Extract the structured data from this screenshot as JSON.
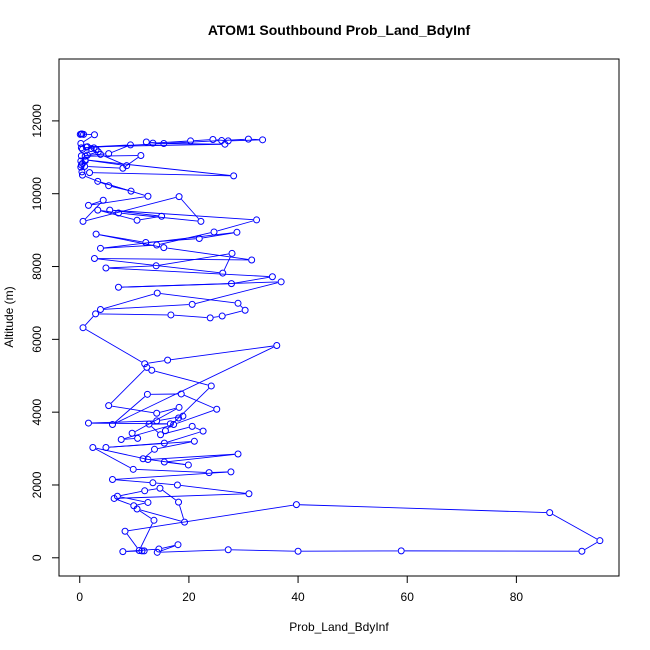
{
  "chart_data": {
    "type": "line",
    "title": "ATOM1 Southbound Prob_Land_BdyInf",
    "xlabel": "Prob_Land_BdyInf",
    "ylabel": "Altitude (m)",
    "xlim": [
      -3.8,
      98.8
    ],
    "ylim": [
      -500,
      13700
    ],
    "xticks": [
      0,
      20,
      40,
      60,
      80
    ],
    "yticks": [
      0,
      2000,
      4000,
      6000,
      8000,
      10000,
      12000
    ],
    "markers": "open-circle",
    "series_color": "#0000ff",
    "series": [
      {
        "x": [
          11.8,
          11.4,
          7.9,
          14.5,
          18,
          14.2,
          27.2,
          40,
          58.9,
          92,
          95.3,
          86.1,
          39.7,
          8.3,
          10.9,
          13.6,
          10.5,
          19.2,
          18.1,
          14.7,
          11.9,
          6.9,
          12.5,
          9.9,
          6.3,
          31,
          17.9,
          13.4,
          6,
          27.7,
          23.7,
          9.8,
          2.4,
          12.5,
          29,
          15.5,
          19.9,
          11.6,
          13.7,
          21,
          4.8,
          15.5,
          22.6,
          20.6,
          14.8,
          12.7,
          16.6,
          1.6,
          14.1,
          18.9,
          18.1,
          15.7,
          24.1,
          13.2,
          12.3,
          5.3,
          14.1,
          18.2,
          9.6,
          10.6,
          7.6,
          17.2,
          25.1,
          18.6,
          12.4,
          6,
          36.1,
          16.1,
          11.9,
          0.6,
          2.9,
          16.7,
          23.9,
          26.1,
          30.3,
          29,
          14.2,
          3.8,
          20.6,
          36.9,
          7.1,
          27.8,
          35.3,
          4.8,
          14,
          27.9,
          26.2,
          2.7,
          31.5,
          15.4,
          3,
          12.1,
          21.9,
          28.8,
          3.8,
          14.1,
          24.6,
          32.4,
          5.5,
          15,
          10.5,
          3.3,
          7.1,
          22.2,
          18.2,
          0.6,
          4.3,
          1.6,
          12.5,
          3.3,
          9.4,
          5.3,
          0.5,
          1.8,
          28.2,
          1,
          8.6,
          3.8,
          2.1,
          1,
          11.2,
          7.9,
          0.9,
          0.4,
          0.2,
          0.3,
          1,
          0.5,
          0.2,
          0.3,
          5.3,
          9.3,
          1.2,
          2.6,
          0.3,
          26,
          30.9,
          33.5,
          27.2,
          24.4,
          20.3,
          13.4,
          12.2,
          15.4,
          26.6,
          1.4,
          3,
          3.4,
          1.4,
          0.5,
          0.2,
          2.7,
          0.3,
          0.7,
          0.4,
          0.1
        ],
        "y": [
          190,
          190,
          170,
          240,
          360,
          150,
          220,
          180,
          190,
          180,
          470,
          1240,
          1460,
          730,
          200,
          1030,
          1340,
          980,
          1530,
          1910,
          1840,
          1690,
          1520,
          1430,
          1630,
          1760,
          2000,
          2060,
          2150,
          2360,
          2340,
          2430,
          3030,
          2700,
          2850,
          2630,
          2550,
          2720,
          2980,
          3200,
          3030,
          3150,
          3480,
          3610,
          3380,
          3670,
          3680,
          3700,
          3760,
          3890,
          3840,
          3490,
          4720,
          5150,
          5230,
          4180,
          3970,
          4130,
          3420,
          3280,
          3250,
          3660,
          4080,
          4500,
          4490,
          3660,
          5830,
          5430,
          5330,
          6320,
          6700,
          6670,
          6590,
          6640,
          6800,
          6990,
          7270,
          6820,
          6960,
          7580,
          7430,
          7530,
          7720,
          7960,
          8020,
          8360,
          7820,
          8220,
          8180,
          8520,
          8890,
          8660,
          8770,
          8940,
          8500,
          8590,
          8950,
          9280,
          9550,
          9380,
          9270,
          9550,
          9470,
          9240,
          9920,
          9240,
          9820,
          9680,
          9930,
          10340,
          10070,
          10220,
          10510,
          10580,
          10490,
          10930,
          10770,
          11080,
          11240,
          11030,
          11050,
          10700,
          10750,
          10600,
          10730,
          10790,
          10900,
          10830,
          10900,
          11040,
          11100,
          11340,
          11280,
          11260,
          11260,
          11460,
          11500,
          11480,
          11450,
          11490,
          11450,
          11390,
          11420,
          11380,
          11360,
          11290,
          11210,
          11150,
          11060,
          11220,
          11380,
          11620,
          11640,
          11630,
          11640,
          11630
        ]
      }
    ]
  }
}
